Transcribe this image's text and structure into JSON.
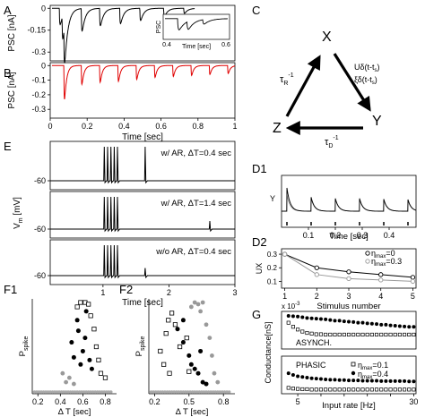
{
  "panel_letters": {
    "A": "A",
    "B": "B",
    "C": "C",
    "D1": "D1",
    "D2": "D2",
    "E": "E",
    "F1": "F1",
    "F2": "F2",
    "G": "G"
  },
  "chart_data": [
    {
      "panel": "A",
      "type": "line",
      "ylabel": "PSC [nA]",
      "yticks": [
        "0",
        "-0.15",
        "-0.3"
      ],
      "ylim": [
        -0.36,
        0.02
      ],
      "xlim": [
        0,
        1
      ],
      "color": "#000000",
      "events": [
        {
          "t": 0.04,
          "amp": -0.16
        },
        {
          "t": 0.055,
          "amp": -0.22
        },
        {
          "t": 0.065,
          "amp": -0.35
        },
        {
          "t": 0.16,
          "amp": -0.22
        },
        {
          "t": 0.26,
          "amp": -0.17
        },
        {
          "t": 0.37,
          "amp": -0.15
        },
        {
          "t": 0.48,
          "amp": -0.12
        },
        {
          "t": 0.61,
          "amp": -0.08
        },
        {
          "t": 0.72,
          "amp": -0.05
        }
      ],
      "inset": {
        "ylabel": "PSC",
        "xlabel": "Time [sec]",
        "xticks": [
          "0.4",
          "0.6"
        ],
        "events": [
          {
            "t": 0.44,
            "amp": -1.0
          },
          {
            "t": 0.47,
            "amp": -0.7
          },
          {
            "t": 0.52,
            "amp": -0.4
          }
        ]
      }
    },
    {
      "panel": "B",
      "type": "line",
      "xlabel": "Time [sec]",
      "ylabel": "PSC [nA]",
      "yticks": [
        "0",
        "-0.1",
        "-0.2",
        "-0.3"
      ],
      "xticks": [
        "0",
        "0.2",
        "0.4",
        "0.6",
        "0.8",
        "1"
      ],
      "ylim": [
        -0.36,
        0.02
      ],
      "xlim": [
        0,
        1
      ],
      "color": "#e00000",
      "events": [
        {
          "t": 0.065,
          "amp": -0.34
        },
        {
          "t": 0.16,
          "amp": -0.19
        },
        {
          "t": 0.26,
          "amp": -0.17
        },
        {
          "t": 0.36,
          "amp": -0.16
        },
        {
          "t": 0.46,
          "amp": -0.14
        },
        {
          "t": 0.56,
          "amp": -0.12
        },
        {
          "t": 0.66,
          "amp": -0.11
        },
        {
          "t": 0.76,
          "amp": -0.1
        },
        {
          "t": 0.86,
          "amp": -0.09
        },
        {
          "t": 0.96,
          "amp": -0.08
        }
      ]
    },
    {
      "panel": "C",
      "type": "diagram",
      "nodes": [
        "X",
        "Y",
        "Z"
      ],
      "edges": [
        {
          "from": "X",
          "to": "Y",
          "labels": [
            "Uδ(t-t",
            "ξδ(t-t"
          ],
          "subscript": "s"
        },
        {
          "from": "Y",
          "to": "Z",
          "label": "τ",
          "subscript": "D",
          "superscript": "-1"
        },
        {
          "from": "Z",
          "to": "X",
          "label": "τ",
          "subscript": "R",
          "superscript": "-1"
        }
      ]
    },
    {
      "panel": "E",
      "type": "line",
      "xlabel": "Time [sec]",
      "ylabel": "V",
      "ylabel_sub": "m",
      "ylabel_unit": "[mV]",
      "xticks": [
        "1",
        "2",
        "3"
      ],
      "xlim": [
        0.2,
        3
      ],
      "traces": [
        {
          "label": "w/ AR, ΔT=0.4 sec",
          "ytick": "-60",
          "spikes": [
            1.02,
            1.07,
            1.12,
            1.17,
            1.22,
            1.64
          ],
          "small": []
        },
        {
          "label": "w/ AR, ΔT=1.4 sec",
          "ytick": "-60",
          "spikes": [
            1.02,
            1.07,
            1.12,
            1.17,
            1.22
          ],
          "small": [
            2.62
          ]
        },
        {
          "label": "w/o AR, ΔT=0.4 sec",
          "ytick": "-60",
          "spikes": [
            1.02,
            1.07,
            1.12,
            1.17,
            1.22
          ],
          "small": [
            1.64
          ]
        }
      ]
    },
    {
      "panel": "D1",
      "type": "line",
      "xlabel": "Time [sec]",
      "ylabel": "Y",
      "xticks": [
        "0.1",
        "0.2",
        "0.3",
        "0.4"
      ],
      "xlim": [
        0,
        0.5
      ],
      "pulses": [
        0.02,
        0.11,
        0.2,
        0.29,
        0.38,
        0.47
      ],
      "black_peaks": [
        1.0,
        0.6,
        0.55,
        0.55,
        0.52,
        0.5
      ],
      "gray_peaks": [
        0.7,
        0.55,
        0.52,
        0.5,
        0.48,
        0.47
      ]
    },
    {
      "panel": "D2",
      "type": "line",
      "xlabel": "Stimulus number",
      "ylabel": "UX",
      "xticks": [
        "1",
        "2",
        "3",
        "4",
        "5"
      ],
      "yticks": [
        "0.1",
        "0.2",
        "0.3"
      ],
      "xlim": [
        0.9,
        5.1
      ],
      "ylim": [
        0.05,
        0.34
      ],
      "series": [
        {
          "name": "η",
          "name_sub": "max",
          "name_val": "=0",
          "color": "#000000",
          "x": [
            1,
            2,
            3,
            4,
            5
          ],
          "y": [
            0.3,
            0.2,
            0.17,
            0.15,
            0.13
          ]
        },
        {
          "name": "η",
          "name_sub": "max",
          "name_val": "=0.3",
          "color": "#999999",
          "x": [
            1,
            2,
            3,
            4,
            5
          ],
          "y": [
            0.3,
            0.15,
            0.12,
            0.11,
            0.1
          ]
        }
      ]
    },
    {
      "panel": "F1",
      "type": "scatter",
      "xlabel": "Δ T [sec]",
      "ylabel": "P",
      "ylabel_sub": "spike",
      "xticks": [
        "0.2",
        "0.4",
        "0.6",
        "0.8"
      ],
      "xlim": [
        0.15,
        0.9
      ],
      "ylim": [
        0,
        1
      ],
      "black": [
        [
          0.5,
          0.55
        ],
        [
          0.55,
          0.8
        ],
        [
          0.56,
          0.68
        ],
        [
          0.6,
          0.45
        ],
        [
          0.62,
          0.6
        ],
        [
          0.58,
          0.3
        ],
        [
          0.66,
          0.35
        ],
        [
          0.68,
          0.25
        ],
        [
          0.52,
          0.38
        ],
        [
          0.63,
          0.9
        ]
      ],
      "open": [
        [
          0.55,
          0.95
        ],
        [
          0.58,
          1.0
        ],
        [
          0.62,
          1.0
        ],
        [
          0.65,
          0.98
        ],
        [
          0.7,
          0.7
        ],
        [
          0.72,
          0.5
        ],
        [
          0.74,
          0.35
        ],
        [
          0.76,
          0.2
        ],
        [
          0.8,
          0.15
        ],
        [
          0.67,
          0.85
        ]
      ],
      "gray": [
        [
          0.42,
          0.2
        ],
        [
          0.45,
          0.1
        ],
        [
          0.48,
          0.15
        ],
        [
          0.52,
          0.08
        ]
      ]
    },
    {
      "panel": "F2",
      "type": "scatter",
      "xlabel": "Δ T [sec]",
      "ylabel": "P",
      "ylabel_sub": "spike",
      "xticks": [
        "0.2",
        "0.5",
        "0.8"
      ],
      "xlim": [
        0.15,
        0.9
      ],
      "ylim": [
        0,
        1
      ],
      "black": [
        [
          0.4,
          0.7
        ],
        [
          0.45,
          0.55
        ],
        [
          0.5,
          0.4
        ],
        [
          0.52,
          0.3
        ],
        [
          0.55,
          0.25
        ],
        [
          0.58,
          0.2
        ],
        [
          0.6,
          0.45
        ],
        [
          0.45,
          0.8
        ],
        [
          0.62,
          0.1
        ],
        [
          0.65,
          0.08
        ]
      ],
      "open": [
        [
          0.25,
          0.45
        ],
        [
          0.3,
          0.65
        ],
        [
          0.32,
          0.8
        ],
        [
          0.35,
          0.88
        ],
        [
          0.38,
          0.75
        ],
        [
          0.42,
          0.5
        ],
        [
          0.28,
          0.3
        ],
        [
          0.33,
          0.2
        ],
        [
          0.5,
          0.22
        ],
        [
          0.48,
          0.6
        ]
      ],
      "gray": [
        [
          0.52,
          0.95
        ],
        [
          0.55,
          1.0
        ],
        [
          0.58,
          0.98
        ],
        [
          0.6,
          0.9
        ],
        [
          0.62,
          1.0
        ],
        [
          0.65,
          0.75
        ],
        [
          0.68,
          0.6
        ],
        [
          0.7,
          0.4
        ],
        [
          0.72,
          0.2
        ],
        [
          0.75,
          0.1
        ]
      ]
    },
    {
      "panel": "G",
      "type": "scatter",
      "xlabel": "Input rate [Hz]",
      "ylabel": "Conductance[nS]",
      "exponent": "x 10",
      "exponent_sup": "-3",
      "xticks": [
        "5",
        "10",
        "15",
        "20",
        "25",
        "30"
      ],
      "xlim": [
        1.5,
        30.5
      ],
      "top": {
        "label": "ASYNCH.",
        "ylim": [
          0,
          1
        ],
        "filled": {
          "x": [
            3,
            4,
            5,
            6,
            7,
            8,
            9,
            10,
            11,
            12,
            13,
            14,
            15,
            16,
            17,
            18,
            19,
            20,
            21,
            22,
            23,
            24,
            25,
            26,
            27,
            28,
            29,
            30
          ],
          "y": [
            0.92,
            0.91,
            0.9,
            0.88,
            0.86,
            0.85,
            0.84,
            0.83,
            0.82,
            0.8,
            0.78,
            0.78,
            0.76,
            0.75,
            0.74,
            0.72,
            0.72,
            0.7,
            0.69,
            0.68,
            0.66,
            0.66,
            0.64,
            0.63,
            0.62,
            0.61,
            0.6,
            0.6
          ]
        },
        "open": {
          "x": [
            3,
            4,
            5,
            6,
            7,
            8,
            9,
            10,
            11,
            12,
            13,
            14,
            15,
            16,
            17,
            18,
            19,
            20,
            21,
            22,
            23,
            24,
            25,
            26,
            27,
            28,
            29,
            30
          ],
          "y": [
            0.72,
            0.6,
            0.52,
            0.46,
            0.42,
            0.4,
            0.38,
            0.38,
            0.37,
            0.37,
            0.37,
            0.37,
            0.37,
            0.37,
            0.37,
            0.37,
            0.37,
            0.37,
            0.37,
            0.37,
            0.37,
            0.37,
            0.37,
            0.37,
            0.37,
            0.37,
            0.37,
            0.37
          ]
        }
      },
      "bottom": {
        "label": "PHASIC",
        "ylim": [
          0,
          1
        ],
        "legend": [
          {
            "name": "η",
            "name_sub": "max",
            "name_val": "=0.1",
            "marker": "open"
          },
          {
            "name": "η",
            "name_sub": "max",
            "name_val": "=0.4",
            "marker": "filled"
          }
        ],
        "filled": {
          "x": [
            3,
            4,
            5,
            6,
            7,
            8,
            9,
            10,
            11,
            12,
            13,
            14,
            15,
            16,
            17,
            18,
            19,
            20,
            21,
            22,
            23,
            24,
            25,
            26,
            27,
            28,
            29,
            30
          ],
          "y": [
            0.55,
            0.5,
            0.46,
            0.44,
            0.42,
            0.4,
            0.39,
            0.38,
            0.37,
            0.36,
            0.36,
            0.35,
            0.35,
            0.34,
            0.34,
            0.34,
            0.33,
            0.33,
            0.33,
            0.33,
            0.32,
            0.32,
            0.32,
            0.32,
            0.32,
            0.32,
            0.31,
            0.31
          ]
        },
        "open": {
          "x": [
            3,
            4,
            5,
            6,
            7,
            8,
            9,
            10,
            11,
            12,
            13,
            14,
            15,
            16,
            17,
            18,
            19,
            20,
            21,
            22,
            23,
            24,
            25,
            26,
            27,
            28,
            29,
            30
          ],
          "y": [
            0.12,
            0.1,
            0.09,
            0.08,
            0.08,
            0.07,
            0.07,
            0.07,
            0.07,
            0.07,
            0.07,
            0.07,
            0.07,
            0.07,
            0.07,
            0.07,
            0.07,
            0.07,
            0.07,
            0.07,
            0.07,
            0.07,
            0.07,
            0.07,
            0.07,
            0.07,
            0.07,
            0.07
          ]
        }
      }
    }
  ]
}
